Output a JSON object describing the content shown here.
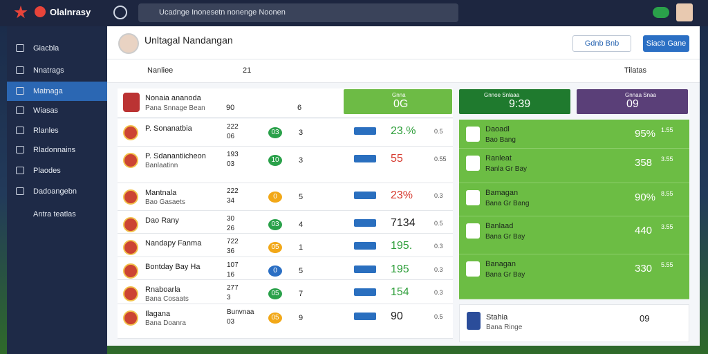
{
  "topbar": {
    "brand": "Olalnrasy",
    "search": "Ucadnge Inonesetn nonenge Noonen"
  },
  "sidebar": [
    "Giacbla",
    "Nnatrags",
    "Matnaga",
    "Wiasas",
    "Rlanles",
    "Rladonnains",
    "Plaodes",
    "Dadoangebn",
    "Antra teatlas"
  ],
  "header": {
    "title": "Unltagal Nandangan",
    "buttons": [
      "Gdnb Bnb",
      "Siacb Gane"
    ]
  },
  "tabs": [
    "Nanliee",
    "21",
    "Tilatas"
  ],
  "summary": {
    "name": "Nonaia ananoda",
    "sub": "Pana Snnage Bean",
    "a": "90",
    "b": "6",
    "cards": [
      {
        "label": "Gnna",
        "value": "0G",
        "color": "#6dbb45"
      },
      {
        "label": "Gnnoe Snlaaa",
        "value": "9:39",
        "color": "#1f7a2e"
      },
      {
        "label": "Gnnaa Snaa",
        "value": "09",
        "color": "#5a3f78"
      }
    ]
  },
  "rows": [
    {
      "name": "P. Sonanatbia",
      "sub": "",
      "top": "222",
      "bottom": "06",
      "badge": "03",
      "count": "3",
      "value": "23.%",
      "small": "0.5",
      "color": "#2e9e3a"
    },
    {
      "name": "P. Sdanantiicheon",
      "sub": "Banlaatinn",
      "top": "193",
      "bottom": "03",
      "badge": "10",
      "count": "3",
      "value": "55",
      "small": "0.55",
      "color": "#d63a2f"
    },
    {
      "name": "Mantnala",
      "sub": "Bao Gasaets",
      "top": "222",
      "bottom": "34",
      "badge": "0",
      "count": "5",
      "value": "23%",
      "small": "0.3",
      "color": "#d63a2f"
    },
    {
      "name": "Dao Rany",
      "sub": "",
      "top": "30",
      "bottom": "26",
      "badge": "03",
      "count": "4",
      "value": "7134",
      "small": "0.5",
      "color": "#222"
    },
    {
      "name": "Nandapy Fanma",
      "sub": "",
      "top": "722",
      "bottom": "36",
      "badge": "05",
      "count": "1",
      "value": "195.",
      "small": "0.3",
      "color": "#2e9e3a"
    },
    {
      "name": "Bontday Bay Ha",
      "sub": "",
      "top": "107",
      "bottom": "16",
      "badge": "0",
      "count": "5",
      "value": "195",
      "small": "0.3",
      "color": "#2e9e3a"
    },
    {
      "name": "Rnaboarla",
      "sub": "Bana Cosaats",
      "top": "277",
      "bottom": "3",
      "badge": "05",
      "count": "7",
      "value": "154",
      "small": "0.3",
      "color": "#2e9e3a"
    },
    {
      "name": "Ilagana",
      "sub": "Bana Doanra",
      "top": "Bunvnaa",
      "bottom": "03",
      "badge": "05",
      "count": "9",
      "value": "90",
      "small": "0.5",
      "color": "#222"
    }
  ],
  "panel": [
    {
      "name": "Daoadl",
      "sub": "Bao Bang",
      "value": "95%",
      "small": "1.55"
    },
    {
      "name": "Ranleat",
      "sub": "Ranla Gr Bay",
      "value": "358",
      "small": "3.55"
    },
    {
      "name": "Bamagan",
      "sub": "Bana Gr Bang",
      "value": "90%",
      "small": "8.55"
    },
    {
      "name": "Banlaad",
      "sub": "Bana Gr Bay",
      "value": "440",
      "small": "3.55"
    },
    {
      "name": "Banagan",
      "sub": "Bana Gr Bay",
      "value": "330",
      "small": "5.55"
    }
  ],
  "footer_card": {
    "name": "Stahia",
    "sub": "Bana Ringe",
    "value": "09"
  }
}
